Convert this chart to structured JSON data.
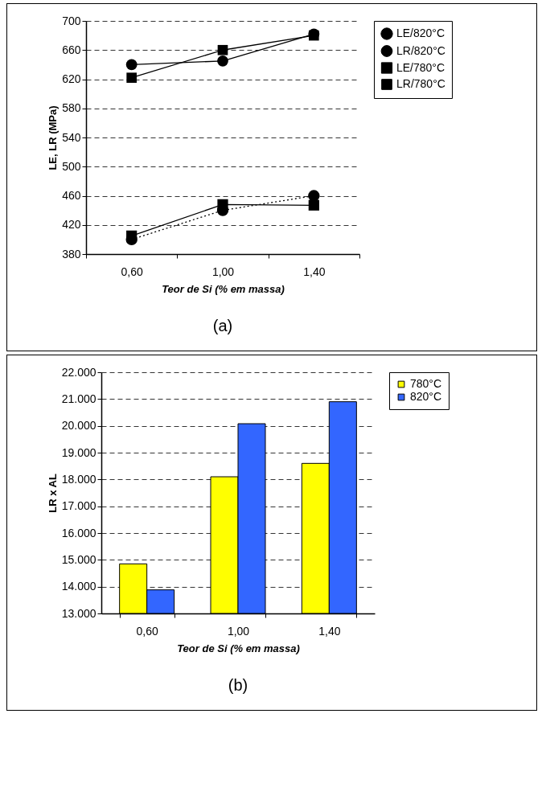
{
  "chart_data": [
    {
      "type": "line",
      "xlabel": "Teor de Si (% em massa)",
      "ylabel": "LE, LR (MPa)",
      "categories": [
        "0,60",
        "1,00",
        "1,40"
      ],
      "ylim": [
        380,
        700
      ],
      "yticks": [
        380,
        420,
        460,
        500,
        540,
        580,
        620,
        660,
        700
      ],
      "grid": "y",
      "legend": "right",
      "annotations": [
        "(a)"
      ],
      "series": [
        {
          "name": "LE/820°C",
          "color": "#000000",
          "marker": "circle",
          "line_style": "dotted",
          "values": [
            400,
            440,
            460
          ]
        },
        {
          "name": "LR/820°C",
          "color": "#000000",
          "marker": "circle",
          "line_style": "solid",
          "values": [
            640,
            645,
            682
          ]
        },
        {
          "name": "LE/780°C",
          "color": "#000000",
          "marker": "square",
          "line_style": "solid",
          "values": [
            405,
            448,
            447
          ]
        },
        {
          "name": "LR/780°C",
          "color": "#000000",
          "marker": "square",
          "line_style": "solid",
          "values": [
            622,
            660,
            680
          ]
        }
      ]
    },
    {
      "type": "bar",
      "xlabel": "Teor de Si (% em massa)",
      "ylabel": "LR x AL",
      "categories": [
        "0,60",
        "1,00",
        "1,40"
      ],
      "ylim": [
        13000,
        22000
      ],
      "yticks": [
        {
          "value": 13000,
          "label": "13.000"
        },
        {
          "value": 14000,
          "label": "14.000"
        },
        {
          "value": 15000,
          "label": "15.000"
        },
        {
          "value": 16000,
          "label": "16.000"
        },
        {
          "value": 17000,
          "label": "17.000"
        },
        {
          "value": 18000,
          "label": "18.000"
        },
        {
          "value": 19000,
          "label": "19.000"
        },
        {
          "value": 20000,
          "label": "20.000"
        },
        {
          "value": 21000,
          "label": "21.000"
        },
        {
          "value": 22000,
          "label": "22.000"
        }
      ],
      "grid": "y",
      "legend": "right",
      "annotations": [
        "(b)"
      ],
      "series": [
        {
          "name": "780°C",
          "color": "#ffff00",
          "values": [
            14850,
            18100,
            18600
          ]
        },
        {
          "name": "820°C",
          "color": "#3366ff",
          "values": [
            13880,
            20080,
            20900
          ]
        }
      ]
    }
  ]
}
